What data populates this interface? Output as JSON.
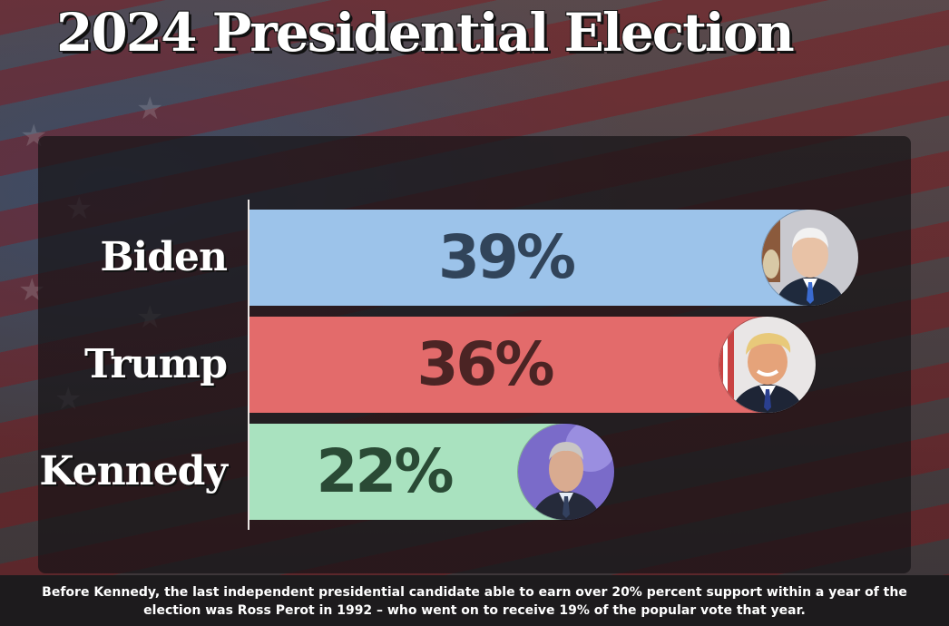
{
  "header": {
    "title": "2024 Presidential Election"
  },
  "chart_data": {
    "type": "bar",
    "orientation": "horizontal",
    "title": "2024 Presidential Election",
    "categories": [
      "Biden",
      "Trump",
      "Kennedy"
    ],
    "values": [
      39,
      36,
      22
    ],
    "value_labels": [
      "39%",
      "36%",
      "22%"
    ],
    "unit": "%",
    "colors": [
      "#9cc3ea",
      "#e36b6b",
      "#a9e2bf"
    ],
    "label_colors": [
      "#31445a",
      "#4b2424",
      "#2a4a35"
    ],
    "icons": [
      "biden-photo",
      "trump-photo",
      "kennedy-photo"
    ],
    "grid": false,
    "legend": "none"
  },
  "caption": "Before Kennedy, the last independent presidential candidate able to earn over 20% percent support within a year of the election was Ross Perot in 1992 – who went on to receive 19% of the popular vote that year."
}
